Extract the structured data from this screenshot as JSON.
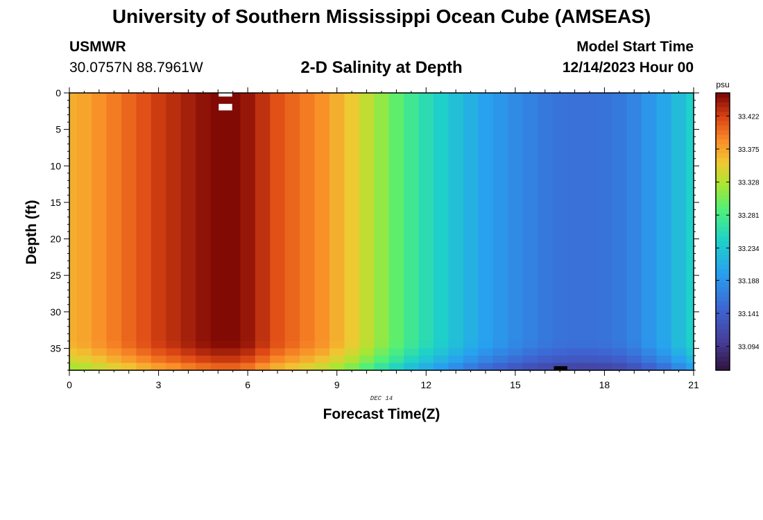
{
  "header": {
    "title": "University of Southern Mississippi Ocean Cube (AMSEAS)",
    "station_id": "USMWR",
    "coords": "30.0757N  88.7961W",
    "plot_title": "2-D Salinity at Depth",
    "model_start_label": "Model Start Time",
    "model_start_value": "12/14/2023 Hour 00"
  },
  "footer": {
    "title": "University of Southern Mississippi Ocean Cube (AMSEAS)"
  },
  "chart_data": {
    "type": "heatmap",
    "title": "2-D Salinity at Depth",
    "xlabel": "Forecast Time(Z)",
    "ylabel": "Depth (ft)",
    "x_annotation": "DEC 14",
    "xlim": [
      0,
      21
    ],
    "ylim": [
      0,
      38
    ],
    "x_ticks": [
      0,
      3,
      6,
      9,
      12,
      15,
      18,
      21
    ],
    "y_ticks": [
      0,
      5,
      10,
      15,
      20,
      25,
      30,
      35
    ],
    "colorbar": {
      "unit": "psu",
      "ticks": [
        "33.422",
        "33.375",
        "33.328",
        "33.281",
        "33.234",
        "33.188",
        "33.141",
        "33.094"
      ],
      "range": [
        33.06,
        33.455
      ]
    },
    "times": [
      0,
      0.5,
      1,
      1.5,
      2,
      2.5,
      3,
      3.5,
      4,
      4.5,
      5,
      5.5,
      6,
      6.5,
      7,
      7.5,
      8,
      8.5,
      9,
      9.5,
      10,
      10.5,
      11,
      11.5,
      12,
      12.5,
      13,
      13.5,
      14,
      14.5,
      15,
      15.5,
      16,
      16.5,
      17,
      17.5,
      18,
      18.5,
      19,
      19.5,
      20,
      20.5,
      21
    ],
    "surface_salinity": [
      33.37,
      33.375,
      33.385,
      33.395,
      33.405,
      33.415,
      33.425,
      33.432,
      33.44,
      33.447,
      33.452,
      33.452,
      33.445,
      33.43,
      33.415,
      33.405,
      33.395,
      33.385,
      33.37,
      33.355,
      33.335,
      33.315,
      33.295,
      33.275,
      33.258,
      33.243,
      33.228,
      33.213,
      33.2,
      33.19,
      33.18,
      33.172,
      33.165,
      33.16,
      33.158,
      33.158,
      33.16,
      33.165,
      33.175,
      33.19,
      33.205,
      33.225,
      33.245
    ],
    "bottom_layer_depths_ft": [
      34.5,
      35.5,
      36.5,
      37.5
    ],
    "bottom_layer_offsets": [
      -0.002,
      -0.012,
      -0.025,
      -0.045
    ],
    "missing_cells": [
      {
        "time": 5.25,
        "depth_top": 0.0,
        "depth_bottom": 0.5
      },
      {
        "time": 5.25,
        "depth_top": 1.5,
        "depth_bottom": 2.4
      }
    ]
  }
}
